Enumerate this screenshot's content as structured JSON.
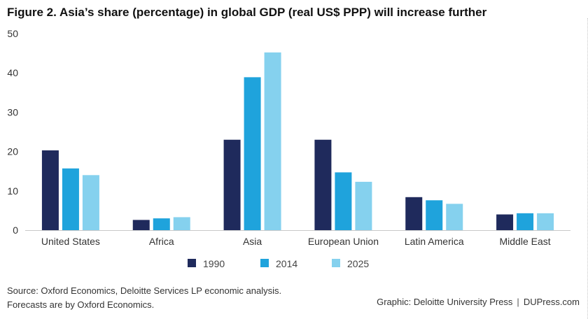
{
  "title": "Figure 2. Asia’s share (percentage) in global GDP (real US$ PPP) will increase further",
  "chart_data": {
    "type": "bar",
    "title": "Figure 2. Asia’s share (percentage) in global GDP (real US$ PPP) will increase further",
    "xlabel": "",
    "ylabel": "",
    "ylim": [
      0,
      50
    ],
    "yticks": [
      0,
      10,
      20,
      30,
      40,
      50
    ],
    "grid": false,
    "legend": "bottom-center",
    "categories": [
      "United States",
      "Africa",
      "Asia",
      "European Union",
      "Latin America",
      "Middle East"
    ],
    "series": [
      {
        "name": "1990",
        "color": "#1f2a5c",
        "values": [
          20.3,
          2.6,
          23.0,
          23.0,
          8.4,
          4.0
        ]
      },
      {
        "name": "2014",
        "color": "#1fa3dc",
        "values": [
          15.7,
          3.0,
          38.9,
          14.7,
          7.6,
          4.3
        ]
      },
      {
        "name": "2025",
        "color": "#85d1ee",
        "values": [
          14.0,
          3.3,
          45.2,
          12.3,
          6.7,
          4.3
        ]
      }
    ]
  },
  "footer": {
    "source_line1": "Source: Oxford Economics, Deloitte Services LP economic analysis.",
    "source_line2": "Forecasts are by Oxford Economics.",
    "credit_left": "Graphic: Deloitte University Press",
    "credit_sep": "|",
    "credit_right": "DUPress.com"
  }
}
